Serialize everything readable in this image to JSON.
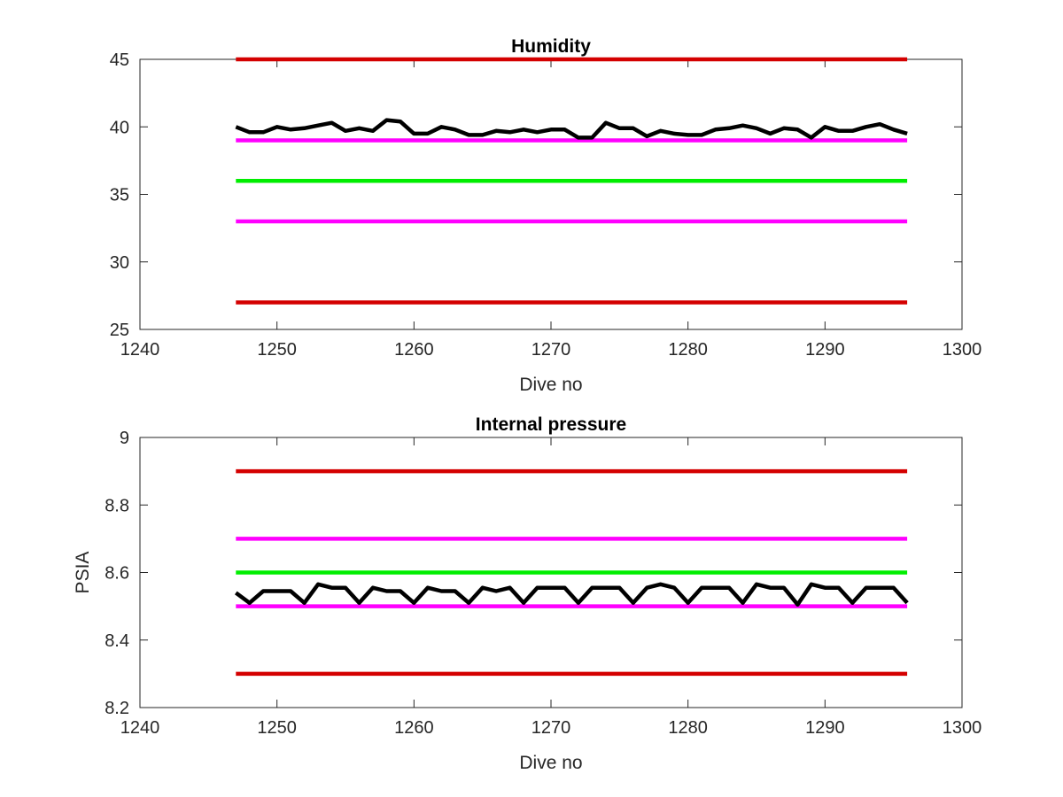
{
  "chart_data": [
    {
      "type": "line",
      "title": "Humidity",
      "xlabel": "Dive no",
      "ylabel": "",
      "xlim": [
        1240,
        1300
      ],
      "ylim": [
        25,
        45
      ],
      "xticks": [
        1240,
        1250,
        1260,
        1270,
        1280,
        1290,
        1300
      ],
      "yticks": [
        25,
        30,
        35,
        40,
        45
      ],
      "grid": false,
      "series": [
        {
          "color": "#d40000",
          "x": [
            1247,
            1296
          ],
          "values": [
            45,
            45
          ]
        },
        {
          "color": "#ff00ff",
          "x": [
            1247,
            1296
          ],
          "values": [
            39,
            39
          ]
        },
        {
          "color": "#00ee00",
          "x": [
            1247,
            1296
          ],
          "values": [
            36,
            36
          ]
        },
        {
          "color": "#ff00ff",
          "x": [
            1247,
            1296
          ],
          "values": [
            33,
            33
          ]
        },
        {
          "color": "#d40000",
          "x": [
            1247,
            1296
          ],
          "values": [
            27,
            27
          ]
        },
        {
          "color": "#000000",
          "x": [
            1247,
            1248,
            1249,
            1250,
            1251,
            1252,
            1253,
            1254,
            1255,
            1256,
            1257,
            1258,
            1259,
            1260,
            1261,
            1262,
            1263,
            1264,
            1265,
            1266,
            1267,
            1268,
            1269,
            1270,
            1271,
            1272,
            1273,
            1274,
            1275,
            1276,
            1277,
            1278,
            1279,
            1280,
            1281,
            1282,
            1283,
            1284,
            1285,
            1286,
            1287,
            1288,
            1289,
            1290,
            1291,
            1292,
            1293,
            1294,
            1295,
            1296
          ],
          "values": [
            40.0,
            39.6,
            39.6,
            40.0,
            39.8,
            39.9,
            40.1,
            40.3,
            39.7,
            39.9,
            39.7,
            40.5,
            40.4,
            39.5,
            39.5,
            40.0,
            39.8,
            39.4,
            39.4,
            39.7,
            39.6,
            39.8,
            39.6,
            39.8,
            39.8,
            39.2,
            39.2,
            40.3,
            39.9,
            39.9,
            39.3,
            39.7,
            39.5,
            39.4,
            39.4,
            39.8,
            39.9,
            40.1,
            39.9,
            39.5,
            39.9,
            39.8,
            39.2,
            40.0,
            39.7,
            39.7,
            40.0,
            40.2,
            39.8,
            39.5
          ]
        }
      ]
    },
    {
      "type": "line",
      "title": "Internal pressure",
      "xlabel": "Dive no",
      "ylabel": "PSIA",
      "xlim": [
        1240,
        1300
      ],
      "ylim": [
        8.2,
        9
      ],
      "xticks": [
        1240,
        1250,
        1260,
        1270,
        1280,
        1290,
        1300
      ],
      "yticks": [
        8.2,
        8.4,
        8.6,
        8.8,
        9
      ],
      "grid": false,
      "series": [
        {
          "color": "#d40000",
          "x": [
            1247,
            1296
          ],
          "values": [
            8.9,
            8.9
          ]
        },
        {
          "color": "#ff00ff",
          "x": [
            1247,
            1296
          ],
          "values": [
            8.7,
            8.7
          ]
        },
        {
          "color": "#00ee00",
          "x": [
            1247,
            1296
          ],
          "values": [
            8.6,
            8.6
          ]
        },
        {
          "color": "#ff00ff",
          "x": [
            1247,
            1296
          ],
          "values": [
            8.5,
            8.5
          ]
        },
        {
          "color": "#d40000",
          "x": [
            1247,
            1296
          ],
          "values": [
            8.3,
            8.3
          ]
        },
        {
          "color": "#000000",
          "x": [
            1247,
            1248,
            1249,
            1250,
            1251,
            1252,
            1253,
            1254,
            1255,
            1256,
            1257,
            1258,
            1259,
            1260,
            1261,
            1262,
            1263,
            1264,
            1265,
            1266,
            1267,
            1268,
            1269,
            1270,
            1271,
            1272,
            1273,
            1274,
            1275,
            1276,
            1277,
            1278,
            1279,
            1280,
            1281,
            1282,
            1283,
            1284,
            1285,
            1286,
            1287,
            1288,
            1289,
            1290,
            1291,
            1292,
            1293,
            1294,
            1295,
            1296
          ],
          "values": [
            8.54,
            8.51,
            8.545,
            8.545,
            8.545,
            8.51,
            8.565,
            8.555,
            8.555,
            8.51,
            8.555,
            8.545,
            8.545,
            8.51,
            8.555,
            8.545,
            8.545,
            8.51,
            8.555,
            8.545,
            8.555,
            8.51,
            8.555,
            8.555,
            8.555,
            8.51,
            8.555,
            8.555,
            8.555,
            8.51,
            8.555,
            8.565,
            8.555,
            8.51,
            8.555,
            8.555,
            8.555,
            8.51,
            8.565,
            8.555,
            8.555,
            8.505,
            8.565,
            8.555,
            8.555,
            8.51,
            8.555,
            8.555,
            8.555,
            8.51
          ]
        }
      ]
    }
  ]
}
